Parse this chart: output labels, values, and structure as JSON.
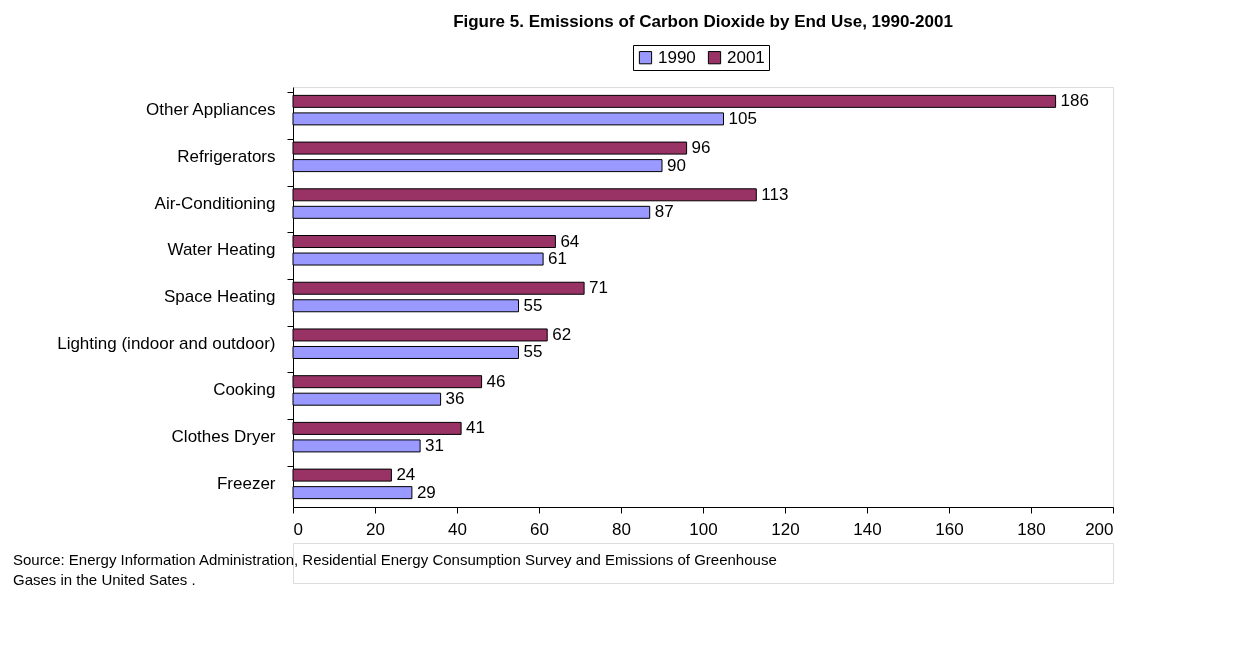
{
  "chart_data": {
    "type": "bar",
    "orientation": "horizontal",
    "title": "Figure 5.  Emissions of Carbon Dioxide by End Use, 1990-2001",
    "categories": [
      "Other Appliances",
      "Refrigerators",
      "Air-Conditioning",
      "Water Heating",
      "Space Heating",
      "Lighting (indoor and outdoor)",
      "Cooking",
      "Clothes Dryer",
      "Freezer"
    ],
    "series": [
      {
        "name": "1990",
        "color": "#9999ff",
        "values": [
          105,
          90,
          87,
          61,
          55,
          55,
          36,
          31,
          29
        ]
      },
      {
        "name": "2001",
        "color": "#993366",
        "values": [
          186,
          96,
          113,
          64,
          71,
          62,
          46,
          41,
          24
        ]
      }
    ],
    "xlim": [
      0,
      200
    ],
    "xticks": [
      0,
      20,
      40,
      60,
      80,
      100,
      120,
      140,
      160,
      180,
      200
    ],
    "grid": false,
    "legend": "top",
    "data_labels": true,
    "annotations": [
      "Source: Energy Information Administration, Residential Energy Consumption Survey and Emissions of Greenhouse Gases in the United Sates ."
    ]
  }
}
